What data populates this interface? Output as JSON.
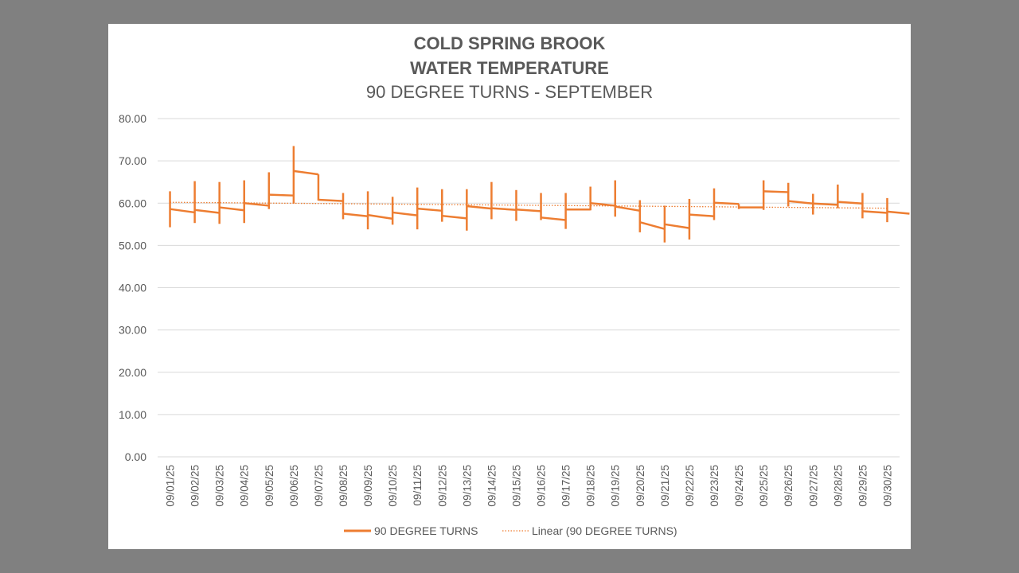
{
  "chart_data": {
    "type": "line",
    "title_line1": "COLD SPRING BROOK",
    "title_line2": "WATER TEMPERATURE",
    "subtitle": "90 DEGREE TURNS - SEPTEMBER",
    "xlabel": "",
    "ylabel": "",
    "ylim": [
      0,
      80
    ],
    "ytick_step": 10,
    "ytick_labels": [
      "0.00",
      "10.00",
      "20.00",
      "30.00",
      "40.00",
      "50.00",
      "60.00",
      "70.00",
      "80.00"
    ],
    "categories": [
      "09/01/25",
      "09/02/25",
      "09/03/25",
      "09/04/25",
      "09/05/25",
      "09/06/25",
      "09/07/25",
      "09/08/25",
      "09/09/25",
      "09/10/25",
      "09/11/25",
      "09/12/25",
      "09/13/25",
      "09/14/25",
      "09/15/25",
      "09/16/25",
      "09/17/25",
      "09/18/25",
      "09/19/25",
      "09/20/25",
      "09/21/25",
      "09/22/25",
      "09/23/25",
      "09/24/25",
      "09/25/25",
      "09/26/25",
      "09/27/25",
      "09/28/25",
      "09/29/25",
      "09/30/25"
    ],
    "series": [
      {
        "name": "90 DEGREE TURNS",
        "color": "#ED7D31",
        "style": "high-low-open-close",
        "high": [
          62.8,
          65.2,
          65.0,
          65.4,
          67.3,
          73.5,
          66.8,
          62.4,
          62.8,
          61.5,
          63.7,
          63.3,
          63.3,
          65.0,
          63.1,
          62.4,
          62.4,
          63.9,
          65.4,
          60.7,
          59.4,
          61.0,
          63.5,
          59.8,
          65.4,
          64.8,
          62.2,
          64.4,
          62.4,
          61.2
        ],
        "low": [
          54.3,
          55.3,
          55.1,
          55.3,
          58.6,
          59.9,
          60.6,
          56.2,
          53.8,
          54.9,
          53.8,
          55.6,
          53.5,
          56.2,
          55.8,
          56.0,
          53.9,
          58.3,
          56.8,
          53.1,
          50.7,
          51.4,
          56.0,
          58.6,
          58.4,
          59.2,
          57.3,
          58.8,
          56.4,
          55.5
        ],
        "open": [
          58.6,
          58.4,
          59.0,
          60.0,
          62.0,
          67.6,
          60.8,
          57.5,
          57.2,
          57.8,
          58.7,
          57.0,
          59.3,
          58.8,
          58.5,
          56.6,
          58.5,
          60.0,
          59.2,
          55.5,
          55.0,
          57.3,
          60.1,
          59.0,
          62.8,
          60.5,
          59.9,
          60.3,
          58.1,
          58.0
        ],
        "close": [
          57.8,
          57.7,
          58.3,
          59.4,
          61.8,
          66.8,
          60.5,
          56.9,
          56.3,
          57.1,
          58.2,
          56.4,
          58.7,
          58.4,
          58.1,
          56.0,
          58.5,
          59.4,
          58.2,
          53.9,
          54.1,
          56.9,
          59.8,
          59.0,
          62.6,
          59.9,
          59.6,
          59.9,
          57.7,
          57.5
        ]
      },
      {
        "name": "Linear (90 DEGREE TURNS)",
        "color": "#ED7D31",
        "style": "dotted",
        "start": 60.2,
        "end": 58.8
      }
    ],
    "grid": true,
    "legend_position": "bottom"
  }
}
